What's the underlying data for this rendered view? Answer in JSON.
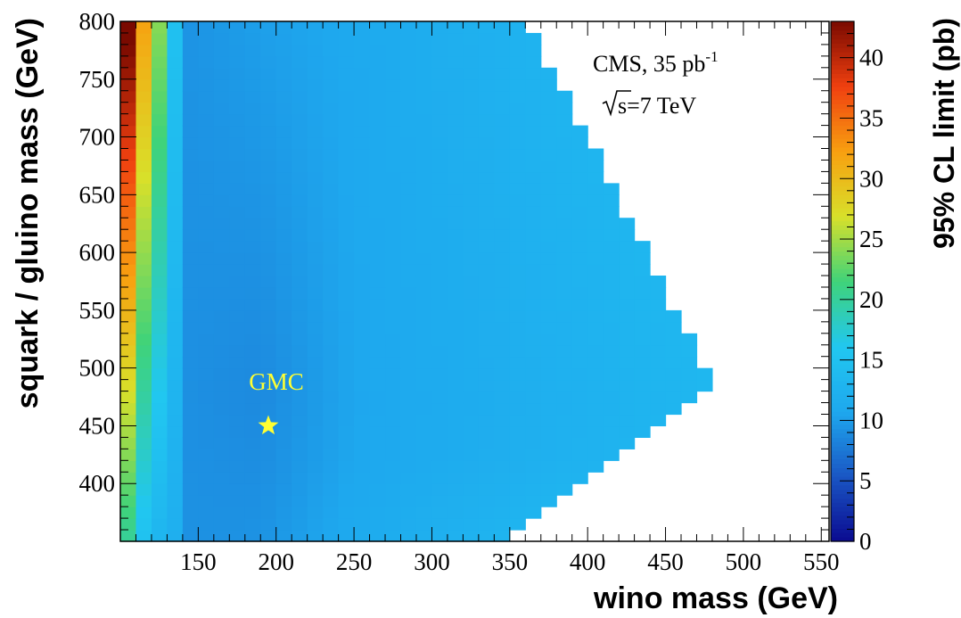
{
  "chart_data": {
    "type": "heatmap",
    "title": "",
    "xlabel": "wino mass (GeV)",
    "ylabel": "squark / gluino mass (GeV)",
    "zlabel": "95% CL limit (pb)",
    "xlim": [
      100,
      555
    ],
    "ylim": [
      350,
      800
    ],
    "zlim": [
      0,
      43
    ],
    "x_ticks": [
      150,
      200,
      250,
      300,
      350,
      400,
      450,
      500,
      550
    ],
    "y_ticks": [
      400,
      450,
      500,
      550,
      600,
      650,
      700,
      750,
      800
    ],
    "z_ticks": [
      0,
      5,
      10,
      15,
      20,
      25,
      30,
      35,
      40
    ],
    "annotations": {
      "experiment": "CMS, 35 pb",
      "experiment_sup": "-1",
      "energy": "s=7 TeV",
      "marker_label": "GMC"
    },
    "marker": {
      "label": "GMC",
      "x": 195,
      "y": 450,
      "color": "#ffff33",
      "symbol": "star"
    },
    "grid": {
      "x_start": 100,
      "x_step": 10,
      "nx": 38,
      "y_start": 350,
      "y_step": 10,
      "ny": 45
    },
    "region": {
      "upper_edge": [
        [
          360,
          800
        ],
        [
          480,
          485
        ]
      ],
      "lower_edge": [
        [
          340,
          350
        ],
        [
          480,
          485
        ]
      ]
    },
    "value_notes": "Limit ~43 pb at wino 100-110 / squark 800 GeV, falling to ~9-10 pb near wino 150-200 and ~12-16 pb toward the right edge of the scanned region.",
    "colorbar": [
      "#0a0a90",
      "#1a56c4",
      "#1ea8ee",
      "#21c7f0",
      "#3fd37a",
      "#d8e02a",
      "#f8a010",
      "#f04010",
      "#7a0a00"
    ]
  }
}
